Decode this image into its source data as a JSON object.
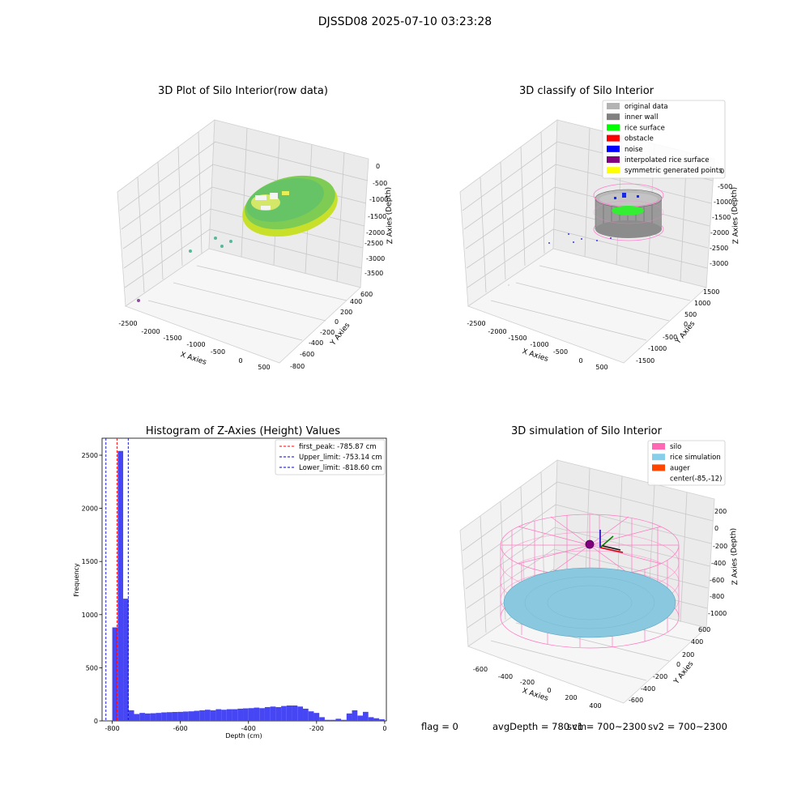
{
  "suptitle": "DJSSD08 2025-07-10 03:23:28",
  "panels": {
    "raw": {
      "title": "3D Plot of Silo Interior(row data)",
      "xlabel": "X Axies",
      "ylabel": "Y Axies",
      "zlabel": "Z Axies (Depth)",
      "xticks": [
        "-2500",
        "-2000",
        "-1500",
        "-1000",
        "-500",
        "0",
        "500"
      ],
      "yticks": [
        "-800",
        "-600",
        "-400",
        "-200",
        "0",
        "200",
        "400",
        "600"
      ],
      "zticks": [
        "0",
        "-500",
        "-1000",
        "-1500",
        "-2000",
        "-2500",
        "-3000",
        "-3500"
      ]
    },
    "classify": {
      "title": "3D classify of Silo Interior",
      "xlabel": "X Axies",
      "ylabel": "Y Axies",
      "zlabel": "Z Axies (Depth)",
      "xticks": [
        "-2500",
        "-2000",
        "-1500",
        "-1000",
        "-500",
        "0",
        "500"
      ],
      "yticks": [
        "-1500",
        "-1000",
        "-500",
        "0",
        "500",
        "1000",
        "1500"
      ],
      "zticks": [
        "0",
        "-500",
        "-1000",
        "-1500",
        "-2000",
        "-2500",
        "-3000"
      ],
      "legend": [
        {
          "label": "original data",
          "color": "#b3b3b3"
        },
        {
          "label": "inner wall",
          "color": "#808080"
        },
        {
          "label": "rice surface",
          "color": "#00ff00"
        },
        {
          "label": "obstacle",
          "color": "#ff0000"
        },
        {
          "label": "noise",
          "color": "#0000ff"
        },
        {
          "label": "interpolated rice surface",
          "color": "#800080"
        },
        {
          "label": "symmetric generated points",
          "color": "#ffff00"
        }
      ]
    },
    "simulation": {
      "title": "3D simulation of Silo Interior",
      "xlabel": "X Axies",
      "ylabel": "Y Axies",
      "zlabel": "Z Axies (Depth)",
      "xticks": [
        "-600",
        "-400",
        "-200",
        "0",
        "200",
        "400"
      ],
      "yticks": [
        "-600",
        "-400",
        "-200",
        "0",
        "200",
        "400",
        "600"
      ],
      "zticks": [
        "200",
        "0",
        "-200",
        "-400",
        "-600",
        "-800",
        "-1000"
      ],
      "legend": [
        {
          "label": "silo",
          "color": "#ff69b4"
        },
        {
          "label": "rice simulation",
          "color": "#87ceeb"
        },
        {
          "label": "auger",
          "color": "#ff4500"
        },
        {
          "label": "center(-85,-12)",
          "color": "none"
        }
      ]
    }
  },
  "chart_data": {
    "type": "bar",
    "title": "Histogram of Z-Axies (Height) Values",
    "xlabel": "Depth (cm)",
    "ylabel": "Frequency",
    "xlim": [
      -830,
      5
    ],
    "ylim": [
      0,
      2660
    ],
    "xticks": [
      -800,
      -600,
      -400,
      -200,
      0
    ],
    "yticks": [
      0,
      500,
      1000,
      1500,
      2000,
      2500
    ],
    "bar_color": "#4646f5",
    "bin_width": 16,
    "bin_starts": [
      -800,
      -784,
      -768,
      -752,
      -736,
      -720,
      -704,
      -688,
      -672,
      -656,
      -640,
      -624,
      -608,
      -592,
      -576,
      -560,
      -544,
      -528,
      -512,
      -496,
      -480,
      -464,
      -448,
      -432,
      -416,
      -400,
      -384,
      -368,
      -352,
      -336,
      -320,
      -304,
      -288,
      -272,
      -256,
      -240,
      -224,
      -208,
      -192,
      -176,
      -160,
      -144,
      -128,
      -112,
      -96,
      -80,
      -64,
      -48,
      -32,
      -16
    ],
    "counts": [
      880,
      2540,
      1150,
      100,
      65,
      75,
      70,
      72,
      75,
      80,
      82,
      84,
      85,
      88,
      90,
      95,
      100,
      105,
      100,
      110,
      105,
      110,
      110,
      115,
      118,
      120,
      125,
      120,
      130,
      135,
      130,
      140,
      145,
      145,
      135,
      115,
      90,
      75,
      35,
      10,
      10,
      20,
      10,
      70,
      100,
      50,
      85,
      35,
      25,
      15
    ],
    "vlines": [
      {
        "label": "first_peak: -785.87 cm",
        "x": -785.87,
        "color": "#ff0000"
      },
      {
        "label": "Upper_limit: -753.14 cm",
        "x": -753.14,
        "color": "#0000cc"
      },
      {
        "label": "Lower_limit: -818.60 cm",
        "x": -818.6,
        "color": "#0000cc"
      }
    ],
    "legend_position": "top-right"
  },
  "footer": {
    "flag": "flag = 0",
    "avg_depth": "avgDepth = 780 cm",
    "sv1": "sv1 = 700~2300",
    "sv2": "sv2 = 700~2300"
  }
}
